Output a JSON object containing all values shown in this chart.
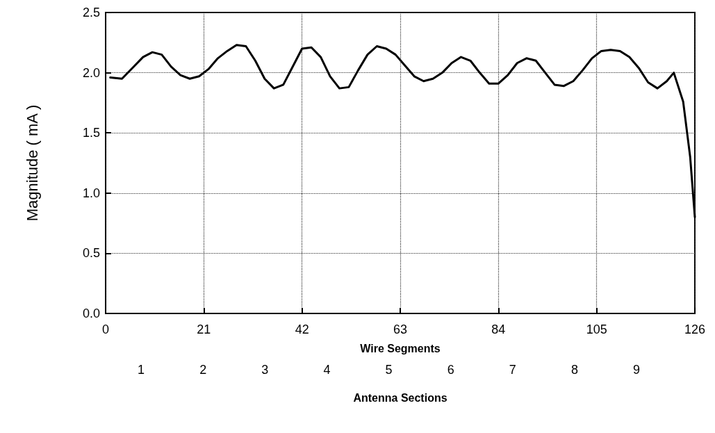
{
  "chart_data": {
    "type": "line",
    "xlabel": "Wire Segments",
    "ylabel": "Magnitude ( mA )",
    "annotations": [
      "1",
      "2",
      "3",
      "4",
      "5",
      "6",
      "7",
      "8",
      "9",
      "Antenna Sections"
    ],
    "xlim": [
      0,
      126
    ],
    "xticks": [
      0,
      21,
      42,
      63,
      84,
      105,
      126
    ],
    "ylim": [
      0,
      2.5
    ],
    "yticks": [
      {
        "value": 0,
        "label": "0.0"
      },
      0.5,
      {
        "value": 1,
        "label": "1.0"
      },
      1.5,
      {
        "value": 2,
        "label": "2.0"
      },
      2.5
    ],
    "x": [
      1,
      3.5,
      6,
      8,
      10,
      12,
      14,
      16,
      18,
      20,
      22,
      24,
      26,
      28,
      30,
      32,
      34,
      36,
      38,
      40,
      42,
      44,
      46,
      48,
      50,
      52,
      54,
      56,
      58,
      60,
      62,
      64,
      66,
      68,
      70,
      72,
      74,
      76,
      78,
      80,
      82,
      84,
      86,
      88,
      90,
      92,
      94,
      96,
      98,
      100,
      102,
      104,
      106,
      108,
      110,
      112,
      114,
      116,
      118,
      120,
      121.5,
      123.5,
      125,
      126
    ],
    "series": [
      {
        "color": "#000000",
        "values": [
          1.96,
          1.95,
          2.05,
          2.13,
          2.17,
          2.15,
          2.05,
          1.98,
          1.95,
          1.97,
          2.03,
          2.12,
          2.18,
          2.23,
          2.22,
          2.1,
          1.95,
          1.87,
          1.9,
          2.05,
          2.2,
          2.21,
          2.13,
          1.97,
          1.87,
          1.88,
          2.02,
          2.15,
          2.22,
          2.2,
          2.15,
          2.06,
          1.97,
          1.93,
          1.95,
          2.0,
          2.08,
          2.13,
          2.1,
          2.0,
          1.91,
          1.91,
          1.98,
          2.08,
          2.12,
          2.1,
          2.0,
          1.9,
          1.89,
          1.93,
          2.02,
          2.12,
          2.18,
          2.19,
          2.18,
          2.13,
          2.04,
          1.92,
          1.87,
          1.93,
          2.0,
          1.76,
          1.3,
          0.8
        ]
      }
    ],
    "grid": true,
    "marker": "none",
    "line_style": "solid"
  }
}
